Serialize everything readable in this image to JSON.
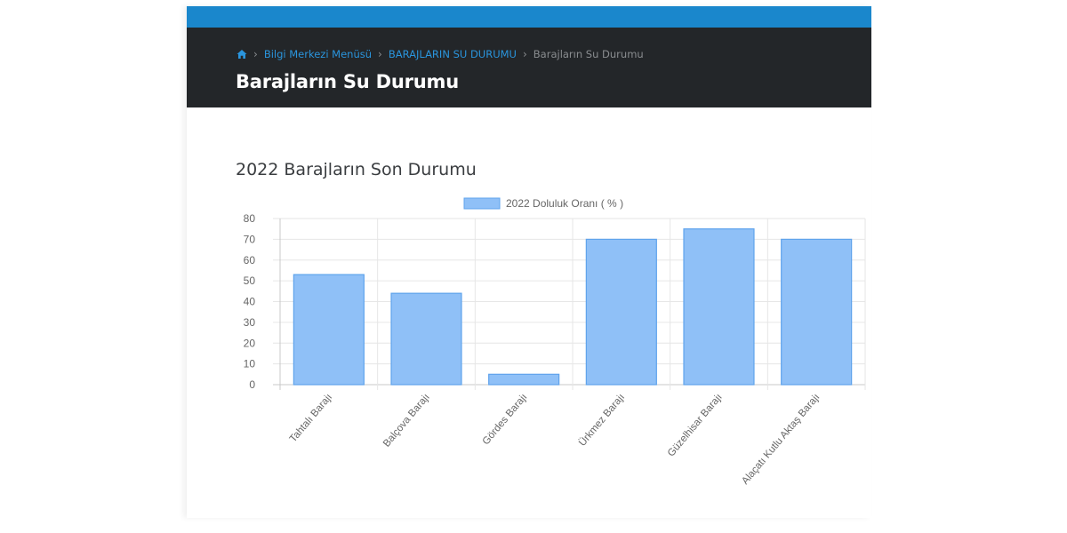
{
  "header": {
    "breadcrumb": [
      {
        "label": "Bilgi Merkezi Menüsü",
        "link": true
      },
      {
        "label": "BARAJLARIN SU DURUMU",
        "link": true
      },
      {
        "label": "Barajların Su Durumu",
        "link": false
      }
    ],
    "title": "Barajların Su Durumu"
  },
  "section": {
    "title": "2022 Barajların Son Durumu"
  },
  "colors": {
    "topbar": "#1a87cc",
    "header_bg": "#232629",
    "link": "#2a95dd",
    "bar_fill": "#8fc0f7",
    "bar_stroke": "#5fa3ec"
  },
  "icons": {
    "home": "home-icon",
    "separator": "chevron-right-icon"
  },
  "chart_data": {
    "type": "bar",
    "categories": [
      "Tahtalı Barajı",
      "Balçova Barajı",
      "Gördes Barajı",
      "Ürkmez Barajı",
      "Güzelhisar Barajı",
      "Alaçatı Kutlu Aktaş Barajı"
    ],
    "series": [
      {
        "name": "2022 Doluluk Oranı ( % )",
        "values": [
          53,
          44,
          5,
          70,
          75,
          70
        ]
      }
    ],
    "title": "",
    "xlabel": "",
    "ylabel": "",
    "ylim": [
      0,
      80
    ],
    "yticks": [
      0,
      10,
      20,
      30,
      40,
      50,
      60,
      70,
      80
    ],
    "grid": true,
    "legend": "top-center"
  }
}
